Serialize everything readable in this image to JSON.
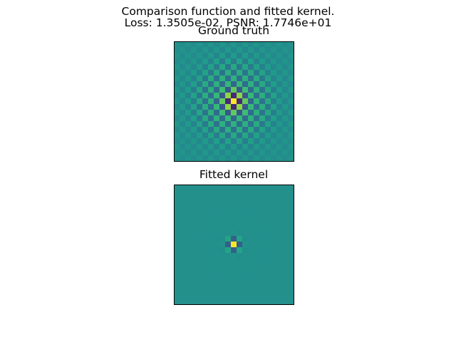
{
  "figure": {
    "suptitle_line1": "Comparison function and fitted kernel.",
    "suptitle_line2": "Loss: 1.3505e-02, PSNR: 1.7746e+01"
  },
  "chart_data": [
    {
      "type": "heatmap",
      "title": "Ground truth",
      "size": 21,
      "colormap": "viridis",
      "vmin": -1,
      "vmax": 1,
      "pattern": "checkerboard sinc-like oscillation, strongest near center, decaying outward",
      "center_values": [
        [
          1.0,
          -1.0
        ],
        [
          -1.0,
          1.0
        ]
      ],
      "approx_amplitude_by_ring": [
        1.0,
        0.75,
        0.55,
        0.4,
        0.28,
        0.18,
        0.1,
        0.05,
        0.02,
        0.0
      ]
    },
    {
      "type": "heatmap",
      "title": "Fitted kernel",
      "size": 21,
      "colormap": "viridis",
      "vmin": -1,
      "vmax": 1,
      "pattern": "compact 4x4 checkerboard at center, near zero elsewhere",
      "center_values": [
        [
          0.9,
          -1.0
        ],
        [
          -1.0,
          0.9
        ]
      ],
      "approx_amplitude_by_ring": [
        1.0,
        0.35,
        0.05,
        0.0
      ]
    }
  ]
}
